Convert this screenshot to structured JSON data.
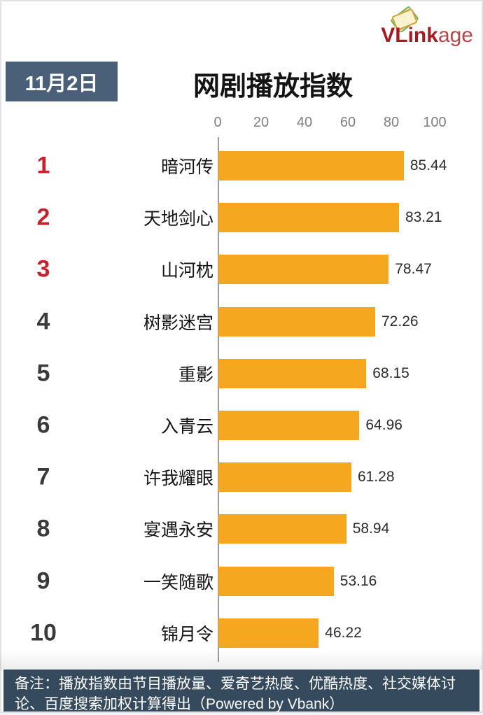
{
  "logo": {
    "bold": "VLink",
    "light": "age"
  },
  "header": {
    "date_badge": "11月2日",
    "title": "网剧播放指数"
  },
  "footer": {
    "note": "备注：播放指数由节目播放量、爱奇艺热度、优酷热度、社交媒体讨论、百度搜索加权计算得出（Powered by Vbank）"
  },
  "chart_data": {
    "type": "bar",
    "orientation": "horizontal",
    "title": "网剧播放指数",
    "date": "11月2日",
    "xlim": [
      0,
      100
    ],
    "axis_ticks": [
      0,
      20,
      40,
      60,
      80,
      100
    ],
    "grid": false,
    "legend": false,
    "rows": [
      {
        "rank": 1,
        "name": "暗河传",
        "value": 85.44
      },
      {
        "rank": 2,
        "name": "天地剑心",
        "value": 83.21
      },
      {
        "rank": 3,
        "name": "山河枕",
        "value": 78.47
      },
      {
        "rank": 4,
        "name": "树影迷宫",
        "value": 72.26
      },
      {
        "rank": 5,
        "name": "重影",
        "value": 68.15
      },
      {
        "rank": 6,
        "name": "入青云",
        "value": 64.96
      },
      {
        "rank": 7,
        "name": "许我耀眼",
        "value": 61.28
      },
      {
        "rank": 8,
        "name": "宴遇永安",
        "value": 58.94
      },
      {
        "rank": 9,
        "name": "一笑随歌",
        "value": 53.16
      },
      {
        "rank": 10,
        "name": "锦月令",
        "value": 46.22
      }
    ],
    "colors": {
      "bar": "#f5a71f",
      "rank_top3": "#c2242e",
      "rank_default": "#3a3a3a",
      "badge_bg": "#4a6078",
      "footer_bg": "#364a5e",
      "logo_red": "#a41a20"
    }
  }
}
